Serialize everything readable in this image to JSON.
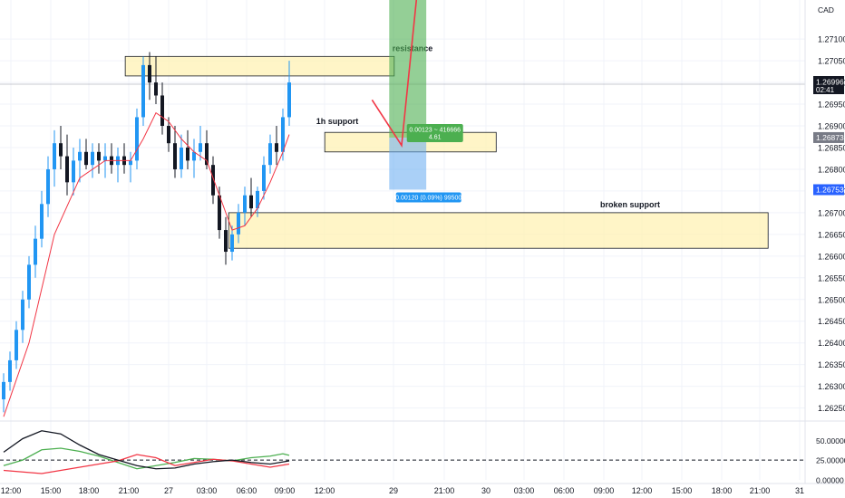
{
  "chart_data": {
    "type": "candlestick",
    "currency": "CAD",
    "last_price": {
      "label": "1.26996",
      "countdown": "02:41",
      "value": 1.26996
    },
    "price_badges": [
      {
        "label": "1.26873",
        "value": 1.26873,
        "color": "#787b86"
      },
      {
        "label": "1.26753",
        "value": 1.26753,
        "color": "#2962ff"
      }
    ],
    "y_axis": {
      "ylim": [
        1.2622,
        1.2719
      ],
      "ticks": [
        "1.27100",
        "1.27050",
        "1.27000",
        "1.26950",
        "1.26900",
        "1.26850",
        "1.26800",
        "1.26750",
        "1.26700",
        "1.26650",
        "1.26600",
        "1.26550",
        "1.26500",
        "1.26450",
        "1.26400",
        "1.26350",
        "1.26300",
        "1.26250"
      ]
    },
    "x_axis": {
      "labels": [
        "12:00",
        "15:00",
        "18:00",
        "21:00",
        "27",
        "03:00",
        "06:00",
        "09:00",
        "12:00",
        "29",
        "21:00",
        "30",
        "03:00",
        "06:00",
        "09:00",
        "12:00",
        "15:00",
        "18:00",
        "21:00",
        "31"
      ]
    },
    "candles": [
      [
        1.2627,
        1.2633,
        1.2624,
        1.2631
      ],
      [
        1.2631,
        1.2638,
        1.2629,
        1.2636
      ],
      [
        1.2636,
        1.2645,
        1.2634,
        1.2643
      ],
      [
        1.2643,
        1.2652,
        1.264,
        1.265
      ],
      [
        1.265,
        1.266,
        1.2648,
        1.2658
      ],
      [
        1.2658,
        1.2667,
        1.2655,
        1.2664
      ],
      [
        1.2664,
        1.2675,
        1.2662,
        1.2672
      ],
      [
        1.2672,
        1.2683,
        1.2669,
        1.268
      ],
      [
        1.268,
        1.2689,
        1.2676,
        1.2686
      ],
      [
        1.2686,
        1.269,
        1.268,
        1.2683
      ],
      [
        1.2683,
        1.2688,
        1.2674,
        1.2677
      ],
      [
        1.2677,
        1.2685,
        1.2674,
        1.2682
      ],
      [
        1.2682,
        1.2687,
        1.2677,
        1.2684
      ],
      [
        1.2684,
        1.2687,
        1.268,
        1.2681
      ],
      [
        1.2681,
        1.2686,
        1.2678,
        1.2684
      ],
      [
        1.2684,
        1.2686,
        1.2679,
        1.2682
      ],
      [
        1.2682,
        1.2686,
        1.2678,
        1.2683
      ],
      [
        1.2683,
        1.2686,
        1.2679,
        1.2681
      ],
      [
        1.2681,
        1.2685,
        1.2677,
        1.2683
      ],
      [
        1.2683,
        1.2686,
        1.2679,
        1.2681
      ],
      [
        1.2681,
        1.2684,
        1.2677,
        1.2682
      ],
      [
        1.2682,
        1.2694,
        1.268,
        1.2692
      ],
      [
        1.2692,
        1.2706,
        1.269,
        1.2704
      ],
      [
        1.2704,
        1.2707,
        1.2696,
        1.27
      ],
      [
        1.27,
        1.2706,
        1.2695,
        1.2697
      ],
      [
        1.2697,
        1.27,
        1.2688,
        1.269
      ],
      [
        1.269,
        1.2692,
        1.2684,
        1.2686
      ],
      [
        1.2686,
        1.269,
        1.2678,
        1.268
      ],
      [
        1.268,
        1.2688,
        1.2678,
        1.2685
      ],
      [
        1.2685,
        1.2689,
        1.268,
        1.2682
      ],
      [
        1.2682,
        1.2687,
        1.2678,
        1.2684
      ],
      [
        1.2684,
        1.269,
        1.2682,
        1.2686
      ],
      [
        1.2686,
        1.2689,
        1.268,
        1.2681
      ],
      [
        1.2681,
        1.2683,
        1.2672,
        1.2674
      ],
      [
        1.2674,
        1.2676,
        1.2664,
        1.2666
      ],
      [
        1.2666,
        1.2669,
        1.2658,
        1.2661
      ],
      [
        1.2661,
        1.2667,
        1.2659,
        1.2665
      ],
      [
        1.2665,
        1.2672,
        1.2663,
        1.267
      ],
      [
        1.267,
        1.2676,
        1.2667,
        1.2674
      ],
      [
        1.2674,
        1.2678,
        1.2669,
        1.2671
      ],
      [
        1.2671,
        1.2676,
        1.2669,
        1.2675
      ],
      [
        1.2675,
        1.2683,
        1.2673,
        1.2681
      ],
      [
        1.2681,
        1.2688,
        1.2679,
        1.2686
      ],
      [
        1.2686,
        1.269,
        1.2681,
        1.2684
      ],
      [
        1.2684,
        1.2694,
        1.2682,
        1.2692
      ],
      [
        1.2692,
        1.2705,
        1.269,
        1.27
      ]
    ],
    "ma_line": [
      [
        0,
        1.2623
      ],
      [
        4,
        1.264
      ],
      [
        8,
        1.2665
      ],
      [
        12,
        1.2678
      ],
      [
        16,
        1.2682
      ],
      [
        20,
        1.2682
      ],
      [
        22,
        1.2687
      ],
      [
        24,
        1.2693
      ],
      [
        26,
        1.2691
      ],
      [
        28,
        1.2687
      ],
      [
        30,
        1.2684
      ],
      [
        32,
        1.2682
      ],
      [
        34,
        1.2674
      ],
      [
        36,
        1.2666
      ],
      [
        38,
        1.2667
      ],
      [
        40,
        1.2671
      ],
      [
        42,
        1.2677
      ],
      [
        44,
        1.2684
      ],
      [
        45,
        1.2688
      ]
    ],
    "zones": [
      {
        "name": "resistance",
        "label": "resistance",
        "top": 1.2706,
        "bottom": 1.27015,
        "x_start": 0.05,
        "x_end": 1.87
      },
      {
        "name": "1h-support",
        "label": "1h support",
        "top": 1.26885,
        "bottom": 1.2684,
        "x_start": 1.4,
        "x_end": 2.56
      },
      {
        "name": "broken-support",
        "label": "broken support",
        "top": 1.267,
        "bottom": 1.26618,
        "x_start": 0.75,
        "x_end": 4.4
      }
    ],
    "position": {
      "entry": 1.26873,
      "target": 1.2719,
      "stop": 1.26753,
      "x_start": 1.83,
      "x_end": 2.05,
      "target_label": "0.00123 ~ 416666",
      "target_label_2": "4.61",
      "stop_label": "0.00120 (0.09%) 99500"
    },
    "projection_path": [
      [
        1.72,
        1.2696
      ],
      [
        1.92,
        1.26855
      ],
      [
        2.02,
        1.2719
      ]
    ],
    "indicator": {
      "ticks": [
        "50.00000",
        "25.00000",
        "0.00000"
      ],
      "ylim": [
        0,
        72
      ],
      "dashed_level": 25,
      "black_line": [
        [
          0,
          35
        ],
        [
          3,
          52
        ],
        [
          6,
          62
        ],
        [
          9,
          58
        ],
        [
          12,
          44
        ],
        [
          15,
          32
        ],
        [
          18,
          25
        ],
        [
          21,
          18
        ],
        [
          24,
          14
        ],
        [
          27,
          15
        ],
        [
          30,
          20
        ],
        [
          33,
          23
        ],
        [
          36,
          25
        ],
        [
          39,
          22
        ],
        [
          42,
          20
        ],
        [
          45,
          24
        ]
      ],
      "green_line": [
        [
          0,
          18
        ],
        [
          3,
          25
        ],
        [
          6,
          38
        ],
        [
          9,
          40
        ],
        [
          12,
          36
        ],
        [
          15,
          30
        ],
        [
          18,
          22
        ],
        [
          21,
          14
        ],
        [
          24,
          18
        ],
        [
          27,
          22
        ],
        [
          30,
          27
        ],
        [
          33,
          26
        ],
        [
          36,
          24
        ],
        [
          39,
          28
        ],
        [
          42,
          30
        ],
        [
          44,
          33
        ],
        [
          45,
          31
        ]
      ],
      "red_line": [
        [
          0,
          12
        ],
        [
          3,
          10
        ],
        [
          6,
          8
        ],
        [
          9,
          12
        ],
        [
          12,
          16
        ],
        [
          15,
          20
        ],
        [
          18,
          24
        ],
        [
          21,
          32
        ],
        [
          24,
          28
        ],
        [
          27,
          18
        ],
        [
          30,
          22
        ],
        [
          33,
          26
        ],
        [
          36,
          24
        ],
        [
          39,
          20
        ],
        [
          42,
          16
        ],
        [
          45,
          20
        ]
      ]
    }
  }
}
